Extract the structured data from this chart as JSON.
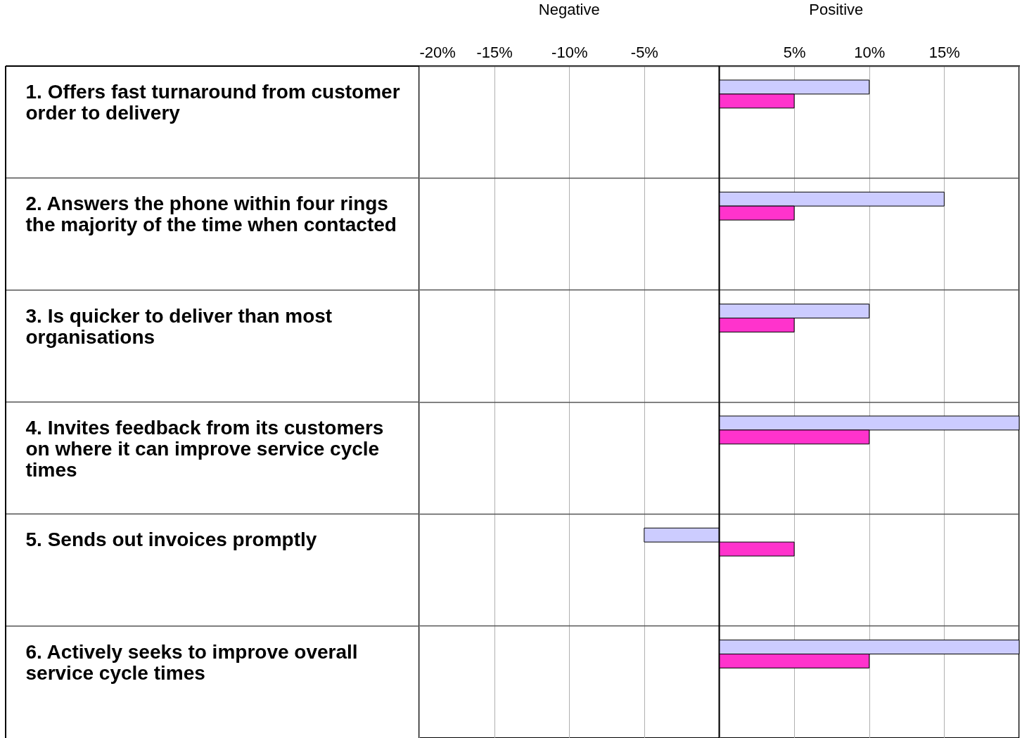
{
  "chart_data": {
    "type": "bar",
    "orientation": "horizontal",
    "categories": [
      "1. Offers fast turnaround from customer order to delivery",
      "2. Answers the phone within four rings the majority of the time when contacted",
      "3. Is quicker to deliver than most organisations",
      "4. Invites feedback from its customers on where it can improve service cycle times",
      "5. Sends out invoices promptly",
      "6. Actively seeks to improve overall service cycle times"
    ],
    "series": [
      {
        "color": "#ccccff",
        "values": [
          10,
          15,
          10,
          20,
          -5,
          20
        ]
      },
      {
        "color": "#ff33cc",
        "values": [
          5,
          5,
          5,
          10,
          5,
          10
        ]
      }
    ],
    "xlim": [
      -20,
      20
    ],
    "xticks": [
      {
        "value": -20,
        "label": "-20%"
      },
      {
        "value": -15,
        "label": "-15%"
      },
      {
        "value": -10,
        "label": "-10%"
      },
      {
        "value": -5,
        "label": "-5%"
      },
      {
        "value": 0,
        "label": null
      },
      {
        "value": 5,
        "label": "5%"
      },
      {
        "value": 10,
        "label": "10%"
      },
      {
        "value": 15,
        "label": "15%"
      },
      {
        "value": 20,
        "label": null
      }
    ],
    "ref_lines": [
      {
        "axis": "x",
        "value": 0,
        "color": "#000000"
      }
    ],
    "annotations": [
      "Negative",
      "Positive"
    ],
    "grid": true
  }
}
